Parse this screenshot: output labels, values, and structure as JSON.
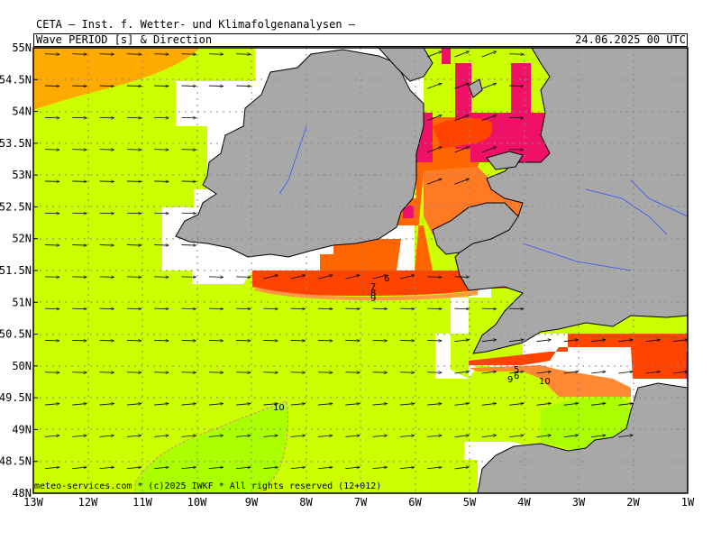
{
  "header": {
    "institute": "CETA — Inst. f. Wetter- und Klimafolgenanalysen —",
    "title": "Wave PERIOD [s] & Direction",
    "valid_time": "24.06.2025 00 UTC"
  },
  "credit": "meteo-services.com * (c)2025 IWKF * All rights reserved (12+012)",
  "axes": {
    "lon_labels": [
      "13W",
      "12W",
      "11W",
      "10W",
      "9W",
      "8W",
      "7W",
      "6W",
      "5W",
      "4W",
      "3W",
      "2W",
      "1W"
    ],
    "lat_labels": [
      "55N",
      "54.5N",
      "54N",
      "53.5N",
      "53N",
      "52.5N",
      "52N",
      "51.5N",
      "51N",
      "50.5N",
      "50N",
      "49.5N",
      "49N",
      "48.5N",
      "48N"
    ]
  },
  "contour_labels": [
    "10",
    "6",
    "7",
    "8",
    "9",
    "5",
    "6",
    "9",
    "10"
  ],
  "colors": {
    "sea_base": "#ccff00",
    "period_10_12": "#aaff00",
    "period_high": "#ffaa00",
    "period_5_6": "#ff4400",
    "period_6_7": "#ff6600",
    "period_7_8": "#ff7a22",
    "period_short": "#ee1166",
    "land": "#a8a8a8",
    "no_data": "#ffffff",
    "grid": "#888888"
  }
}
